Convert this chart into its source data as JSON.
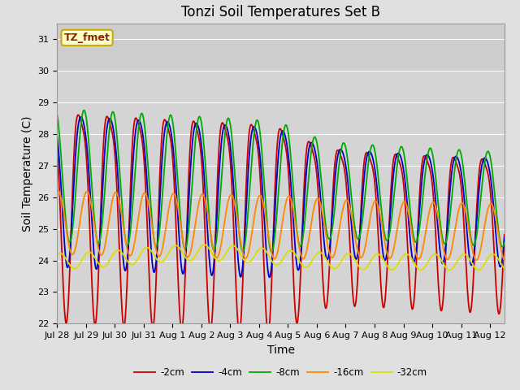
{
  "title": "Tonzi Soil Temperatures Set B",
  "xlabel": "Time",
  "ylabel": "Soil Temperature (C)",
  "ylim": [
    22.0,
    31.5
  ],
  "yticks": [
    22.0,
    23.0,
    24.0,
    25.0,
    26.0,
    27.0,
    28.0,
    29.0,
    30.0,
    31.0
  ],
  "fig_bg": "#e0e0e0",
  "plot_bg": "#d4d4d4",
  "legend_label": "TZ_fmet",
  "legend_bg": "#ffffcc",
  "legend_border": "#ccaa00",
  "series_colors": {
    "-2cm": "#cc0000",
    "-4cm": "#0000cc",
    "-8cm": "#00aa00",
    "-16cm": "#ff8800",
    "-32cm": "#dddd00"
  },
  "series_labels": [
    "-2cm",
    "-4cm",
    "-8cm",
    "-16cm",
    "-32cm"
  ],
  "num_days": 15.5,
  "points_per_day": 96,
  "title_fontsize": 12,
  "axis_label_fontsize": 10,
  "tick_fontsize": 8
}
